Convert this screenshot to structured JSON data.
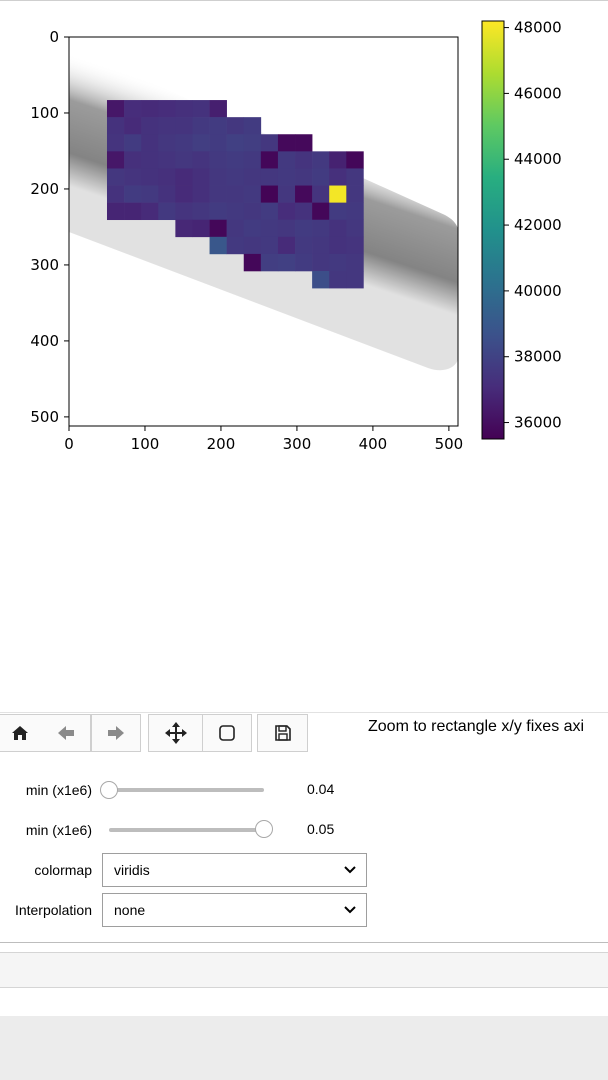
{
  "chart_data": {
    "type": "heatmap",
    "xlim": [
      0,
      512
    ],
    "ylim": [
      512,
      0
    ],
    "x_ticks": [
      "0",
      "100",
      "200",
      "300",
      "400",
      "500"
    ],
    "y_ticks": [
      "0",
      "100",
      "200",
      "300",
      "400",
      "500"
    ],
    "colorbar": {
      "colormap": "viridis",
      "range": [
        35500,
        48200
      ],
      "ticks": [
        "36000",
        "38000",
        "40000",
        "42000",
        "44000",
        "46000",
        "48000"
      ]
    },
    "background_image": "grayscale diagonal band",
    "cell_size": 22.5,
    "cells": [
      {
        "x": 50,
        "y": 83,
        "v": 36300
      },
      {
        "x": 72.5,
        "y": 83,
        "v": 37100
      },
      {
        "x": 95,
        "y": 83,
        "v": 37000
      },
      {
        "x": 117.5,
        "y": 83,
        "v": 37100
      },
      {
        "x": 140,
        "y": 83,
        "v": 37200
      },
      {
        "x": 162.5,
        "y": 83,
        "v": 37300
      },
      {
        "x": 185,
        "y": 83,
        "v": 36600
      },
      {
        "x": 50,
        "y": 105.5,
        "v": 37300
      },
      {
        "x": 72.5,
        "y": 105.5,
        "v": 37000
      },
      {
        "x": 95,
        "y": 105.5,
        "v": 37300
      },
      {
        "x": 117.5,
        "y": 105.5,
        "v": 37400
      },
      {
        "x": 140,
        "y": 105.5,
        "v": 37400
      },
      {
        "x": 162.5,
        "y": 105.5,
        "v": 37600
      },
      {
        "x": 185,
        "y": 105.5,
        "v": 37700
      },
      {
        "x": 207.5,
        "y": 105.5,
        "v": 37500
      },
      {
        "x": 230,
        "y": 105.5,
        "v": 37700
      },
      {
        "x": 50,
        "y": 128,
        "v": 37400
      },
      {
        "x": 72.5,
        "y": 128,
        "v": 37700
      },
      {
        "x": 95,
        "y": 128,
        "v": 37300
      },
      {
        "x": 117.5,
        "y": 128,
        "v": 37500
      },
      {
        "x": 140,
        "y": 128,
        "v": 37600
      },
      {
        "x": 162.5,
        "y": 128,
        "v": 37800
      },
      {
        "x": 185,
        "y": 128,
        "v": 37700
      },
      {
        "x": 207.5,
        "y": 128,
        "v": 37900
      },
      {
        "x": 230,
        "y": 128,
        "v": 37800
      },
      {
        "x": 252.5,
        "y": 128,
        "v": 37500
      },
      {
        "x": 275,
        "y": 128,
        "v": 35800
      },
      {
        "x": 297.5,
        "y": 128,
        "v": 35800
      },
      {
        "x": 50,
        "y": 150.5,
        "v": 36300
      },
      {
        "x": 72.5,
        "y": 150.5,
        "v": 37200
      },
      {
        "x": 95,
        "y": 150.5,
        "v": 37300
      },
      {
        "x": 117.5,
        "y": 150.5,
        "v": 37400
      },
      {
        "x": 140,
        "y": 150.5,
        "v": 37500
      },
      {
        "x": 162.5,
        "y": 150.5,
        "v": 37400
      },
      {
        "x": 185,
        "y": 150.5,
        "v": 37600
      },
      {
        "x": 207.5,
        "y": 150.5,
        "v": 37700
      },
      {
        "x": 230,
        "y": 150.5,
        "v": 37600
      },
      {
        "x": 252.5,
        "y": 150.5,
        "v": 35700
      },
      {
        "x": 275,
        "y": 150.5,
        "v": 37600
      },
      {
        "x": 297.5,
        "y": 150.5,
        "v": 37400
      },
      {
        "x": 320,
        "y": 150.5,
        "v": 37600
      },
      {
        "x": 342.5,
        "y": 150.5,
        "v": 36700
      },
      {
        "x": 365,
        "y": 150.5,
        "v": 35700
      },
      {
        "x": 50,
        "y": 173,
        "v": 37500
      },
      {
        "x": 72.5,
        "y": 173,
        "v": 37400
      },
      {
        "x": 95,
        "y": 173,
        "v": 37300
      },
      {
        "x": 117.5,
        "y": 173,
        "v": 37200
      },
      {
        "x": 140,
        "y": 173,
        "v": 37000
      },
      {
        "x": 162.5,
        "y": 173,
        "v": 37200
      },
      {
        "x": 185,
        "y": 173,
        "v": 37500
      },
      {
        "x": 207.5,
        "y": 173,
        "v": 37600
      },
      {
        "x": 230,
        "y": 173,
        "v": 37500
      },
      {
        "x": 252.5,
        "y": 173,
        "v": 37500
      },
      {
        "x": 275,
        "y": 173,
        "v": 37600
      },
      {
        "x": 297.5,
        "y": 173,
        "v": 37500
      },
      {
        "x": 320,
        "y": 173,
        "v": 37700
      },
      {
        "x": 342.5,
        "y": 173,
        "v": 37200
      },
      {
        "x": 365,
        "y": 173,
        "v": 37500
      },
      {
        "x": 50,
        "y": 195.5,
        "v": 37300
      },
      {
        "x": 72.5,
        "y": 195.5,
        "v": 37700
      },
      {
        "x": 95,
        "y": 195.5,
        "v": 37600
      },
      {
        "x": 117.5,
        "y": 195.5,
        "v": 37300
      },
      {
        "x": 140,
        "y": 195.5,
        "v": 37000
      },
      {
        "x": 162.5,
        "y": 195.5,
        "v": 37200
      },
      {
        "x": 185,
        "y": 195.5,
        "v": 37500
      },
      {
        "x": 207.5,
        "y": 195.5,
        "v": 37500
      },
      {
        "x": 230,
        "y": 195.5,
        "v": 37600
      },
      {
        "x": 252.5,
        "y": 195.5,
        "v": 35600
      },
      {
        "x": 275,
        "y": 195.5,
        "v": 37500
      },
      {
        "x": 297.5,
        "y": 195.5,
        "v": 35800
      },
      {
        "x": 320,
        "y": 195.5,
        "v": 37400
      },
      {
        "x": 342.5,
        "y": 195.5,
        "v": 48000
      },
      {
        "x": 365,
        "y": 195.5,
        "v": 37500
      },
      {
        "x": 50,
        "y": 218,
        "v": 36800
      },
      {
        "x": 72.5,
        "y": 218,
        "v": 36800
      },
      {
        "x": 95,
        "y": 218,
        "v": 37000
      },
      {
        "x": 117.5,
        "y": 218,
        "v": 37600
      },
      {
        "x": 140,
        "y": 218,
        "v": 37400
      },
      {
        "x": 162.5,
        "y": 218,
        "v": 37500
      },
      {
        "x": 185,
        "y": 218,
        "v": 37700
      },
      {
        "x": 207.5,
        "y": 218,
        "v": 37600
      },
      {
        "x": 230,
        "y": 218,
        "v": 37500
      },
      {
        "x": 252.5,
        "y": 218,
        "v": 37700
      },
      {
        "x": 275,
        "y": 218,
        "v": 37100
      },
      {
        "x": 297.5,
        "y": 218,
        "v": 37300
      },
      {
        "x": 320,
        "y": 218,
        "v": 35700
      },
      {
        "x": 342.5,
        "y": 218,
        "v": 37700
      },
      {
        "x": 365,
        "y": 218,
        "v": 37600
      },
      {
        "x": 140,
        "y": 240.5,
        "v": 36900
      },
      {
        "x": 162.5,
        "y": 240.5,
        "v": 36800
      },
      {
        "x": 185,
        "y": 240.5,
        "v": 35700
      },
      {
        "x": 207.5,
        "y": 240.5,
        "v": 37500
      },
      {
        "x": 230,
        "y": 240.5,
        "v": 37700
      },
      {
        "x": 252.5,
        "y": 240.5,
        "v": 37600
      },
      {
        "x": 275,
        "y": 240.5,
        "v": 37500
      },
      {
        "x": 297.5,
        "y": 240.5,
        "v": 37700
      },
      {
        "x": 320,
        "y": 240.5,
        "v": 37600
      },
      {
        "x": 342.5,
        "y": 240.5,
        "v": 37300
      },
      {
        "x": 365,
        "y": 240.5,
        "v": 37500
      },
      {
        "x": 185,
        "y": 263,
        "v": 38900
      },
      {
        "x": 207.5,
        "y": 263,
        "v": 37600
      },
      {
        "x": 230,
        "y": 263,
        "v": 37500
      },
      {
        "x": 252.5,
        "y": 263,
        "v": 37600
      },
      {
        "x": 275,
        "y": 263,
        "v": 37000
      },
      {
        "x": 297.5,
        "y": 263,
        "v": 37600
      },
      {
        "x": 320,
        "y": 263,
        "v": 37500
      },
      {
        "x": 342.5,
        "y": 263,
        "v": 37300
      },
      {
        "x": 365,
        "y": 263,
        "v": 37400
      },
      {
        "x": 230,
        "y": 285.5,
        "v": 35700
      },
      {
        "x": 252.5,
        "y": 285.5,
        "v": 37800
      },
      {
        "x": 275,
        "y": 285.5,
        "v": 37900
      },
      {
        "x": 297.5,
        "y": 285.5,
        "v": 37700
      },
      {
        "x": 320,
        "y": 285.5,
        "v": 37500
      },
      {
        "x": 342.5,
        "y": 285.5,
        "v": 37600
      },
      {
        "x": 365,
        "y": 285.5,
        "v": 37500
      },
      {
        "x": 320,
        "y": 308,
        "v": 38500
      },
      {
        "x": 342.5,
        "y": 308,
        "v": 37500
      },
      {
        "x": 365,
        "y": 308,
        "v": 37500
      }
    ]
  },
  "toolbar": {
    "buttons": [
      {
        "name": "home-button",
        "icon": "home-icon"
      },
      {
        "name": "back-button",
        "icon": "arrow-left-icon"
      },
      {
        "name": "forward-button",
        "icon": "arrow-right-icon"
      },
      {
        "name": "pan-button",
        "icon": "move-icon"
      },
      {
        "name": "zoom-button",
        "icon": "square-icon"
      },
      {
        "name": "save-button",
        "icon": "floppy-icon"
      }
    ],
    "status": "Zoom to rectangle x/y fixes axi"
  },
  "controls": {
    "slider_min": {
      "label": "min (x1e6)",
      "value": "0.04",
      "fraction": 0.0
    },
    "slider_max": {
      "label": "min (x1e6)",
      "value": "0.05",
      "fraction": 1.0
    },
    "colormap": {
      "label": "colormap",
      "value": "viridis"
    },
    "interpolation": {
      "label": "Interpolation",
      "value": "none"
    }
  }
}
